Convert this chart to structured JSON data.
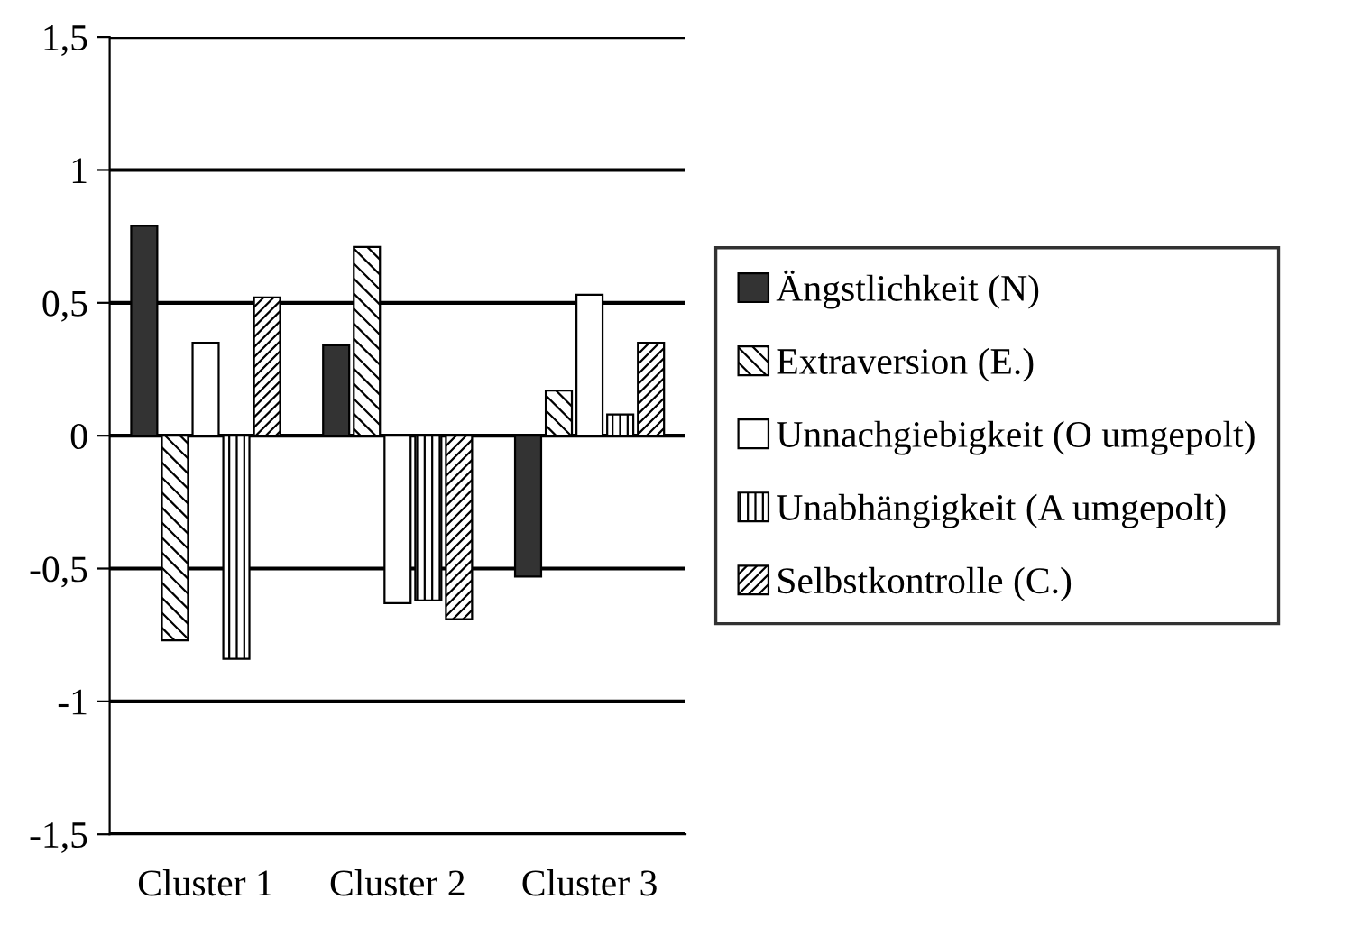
{
  "chart_data": {
    "type": "bar",
    "categories": [
      "Cluster 1",
      "Cluster 2",
      "Cluster 3"
    ],
    "series": [
      {
        "name": "Ängstlichkeit (N)",
        "color": "#333333",
        "values": [
          0.79,
          0.34,
          -0.53
        ]
      },
      {
        "name": "Extraversion (E.)",
        "color": "#000000",
        "values": [
          -0.77,
          0.71,
          0.17
        ]
      },
      {
        "name": "Unnachgiebigkeit (O umgepolt)",
        "color": "#ffffff",
        "values": [
          0.35,
          -0.63,
          0.53
        ]
      },
      {
        "name": "Unabhängigkeit (A umgepolt)",
        "color": "#000000",
        "values": [
          -0.84,
          -0.62,
          0.08
        ]
      },
      {
        "name": "Selbstkontrolle (C.)",
        "color": "#000000",
        "values": [
          0.52,
          -0.69,
          0.35
        ]
      }
    ],
    "ylim": [
      -1.5,
      1.5
    ],
    "yticks": [
      {
        "value": -1.5,
        "label": "-1,5"
      },
      {
        "value": -1,
        "label": "-1"
      },
      {
        "value": -0.5,
        "label": "-0,5"
      },
      {
        "value": 0,
        "label": "0"
      },
      {
        "value": 0.5,
        "label": "0,5"
      },
      {
        "value": 1,
        "label": "1"
      },
      {
        "value": 1.5,
        "label": "1,5"
      }
    ],
    "grid": "y",
    "legend": "right"
  }
}
